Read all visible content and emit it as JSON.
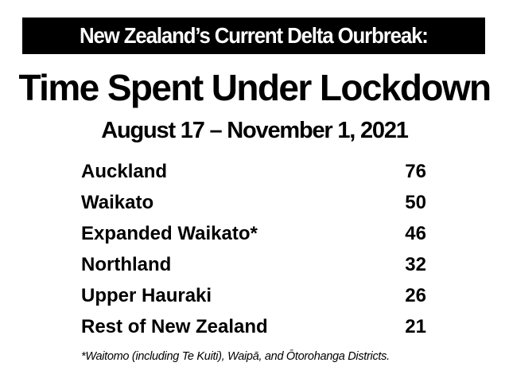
{
  "banner": {
    "text": "New Zealand’s Current Delta Ourbreak:"
  },
  "title": "Time Spent Under Lockdown",
  "date_range": "August 17 – November 1, 2021",
  "regions": [
    {
      "name": "Auckland",
      "days": "76"
    },
    {
      "name": "Waikato",
      "days": "50"
    },
    {
      "name": "Expanded Waikato*",
      "days": "46"
    },
    {
      "name": "Northland",
      "days": "32"
    },
    {
      "name": "Upper Hauraki",
      "days": "26"
    },
    {
      "name": "Rest of New Zealand",
      "days": "21"
    }
  ],
  "footnote": "*Waitomo (including Te Kuiti), Waipā, and Ōtorohanga Districts.",
  "colors": {
    "banner_background": "#000000",
    "banner_text": "#ffffff",
    "text": "#000000",
    "background": "#ffffff"
  }
}
